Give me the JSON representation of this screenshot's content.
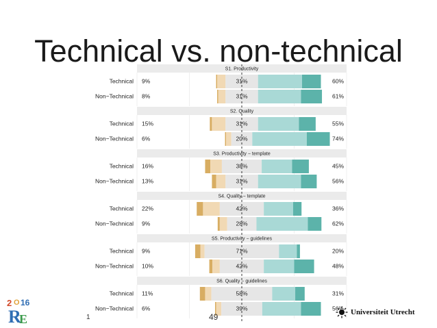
{
  "slide": {
    "title": "Technical vs. non-technical",
    "slide_number": "1",
    "page_number": "49",
    "logo_left_text": "2016 RE",
    "logo_right_text": "Universiteit Utrecht"
  },
  "colors": {
    "strong_disagree": "#d8ad62",
    "disagree": "#f1d9b4",
    "neutral": "#e6e6e6",
    "agree": "#a9d9d6",
    "strong_agree": "#5cb3aa",
    "panel_header": "#ebebeb",
    "center_line": "#333333"
  },
  "chart_data": {
    "type": "bar",
    "subtype": "diverging-stacked-likert",
    "scale": [
      "Strongly disagree",
      "Disagree",
      "Neutral",
      "Agree",
      "Strongly agree"
    ],
    "xlim": [
      -100,
      100
    ],
    "grid": true,
    "panels": [
      {
        "title": "S1. Productivity",
        "rows": [
          {
            "group": "Technical",
            "left_label": "9%",
            "center_label": "31%",
            "right_label": "60%",
            "values": [
              1,
              8,
              31,
              42,
              18
            ]
          },
          {
            "group": "Non−Technical",
            "left_label": "8%",
            "center_label": "31%",
            "right_label": "61%",
            "values": [
              1,
              7,
              31,
              41,
              20
            ]
          }
        ]
      },
      {
        "title": "S2. Quality",
        "rows": [
          {
            "group": "Technical",
            "left_label": "15%",
            "center_label": "31%",
            "right_label": "55%",
            "values": [
              2,
              13,
              31,
              39,
              16
            ]
          },
          {
            "group": "Non−Technical",
            "left_label": "6%",
            "center_label": "20%",
            "right_label": "74%",
            "values": [
              1,
              5,
              20,
              52,
              22
            ]
          }
        ]
      },
      {
        "title": "S3. Productivity − template",
        "rows": [
          {
            "group": "Technical",
            "left_label": "16%",
            "center_label": "38%",
            "right_label": "45%",
            "values": [
              5,
              11,
              38,
              29,
              16
            ]
          },
          {
            "group": "Non−Technical",
            "left_label": "13%",
            "center_label": "31%",
            "right_label": "56%",
            "values": [
              4,
              9,
              31,
              41,
              15
            ]
          }
        ]
      },
      {
        "title": "S4. Quality − template",
        "rows": [
          {
            "group": "Technical",
            "left_label": "22%",
            "center_label": "42%",
            "right_label": "36%",
            "values": [
              6,
              16,
              42,
              28,
              8
            ]
          },
          {
            "group": "Non−Technical",
            "left_label": "9%",
            "center_label": "28%",
            "right_label": "62%",
            "values": [
              2,
              7,
              28,
              49,
              13
            ]
          }
        ]
      },
      {
        "title": "S5. Productivity − guidelines",
        "rows": [
          {
            "group": "Technical",
            "left_label": "9%",
            "center_label": "71%",
            "right_label": "20%",
            "values": [
              5,
              4,
              71,
              17,
              3
            ]
          },
          {
            "group": "Non−Technical",
            "left_label": "10%",
            "center_label": "42%",
            "right_label": "48%",
            "values": [
              3,
              7,
              42,
              29,
              19
            ]
          }
        ]
      },
      {
        "title": "S6. Quality − guidelines",
        "rows": [
          {
            "group": "Technical",
            "left_label": "11%",
            "center_label": "58%",
            "right_label": "31%",
            "values": [
              5,
              6,
              58,
              22,
              9
            ]
          },
          {
            "group": "Non−Technical",
            "left_label": "6%",
            "center_label": "39%",
            "right_label": "56%",
            "values": [
              1,
              5,
              39,
              37,
              19
            ]
          }
        ]
      }
    ]
  }
}
